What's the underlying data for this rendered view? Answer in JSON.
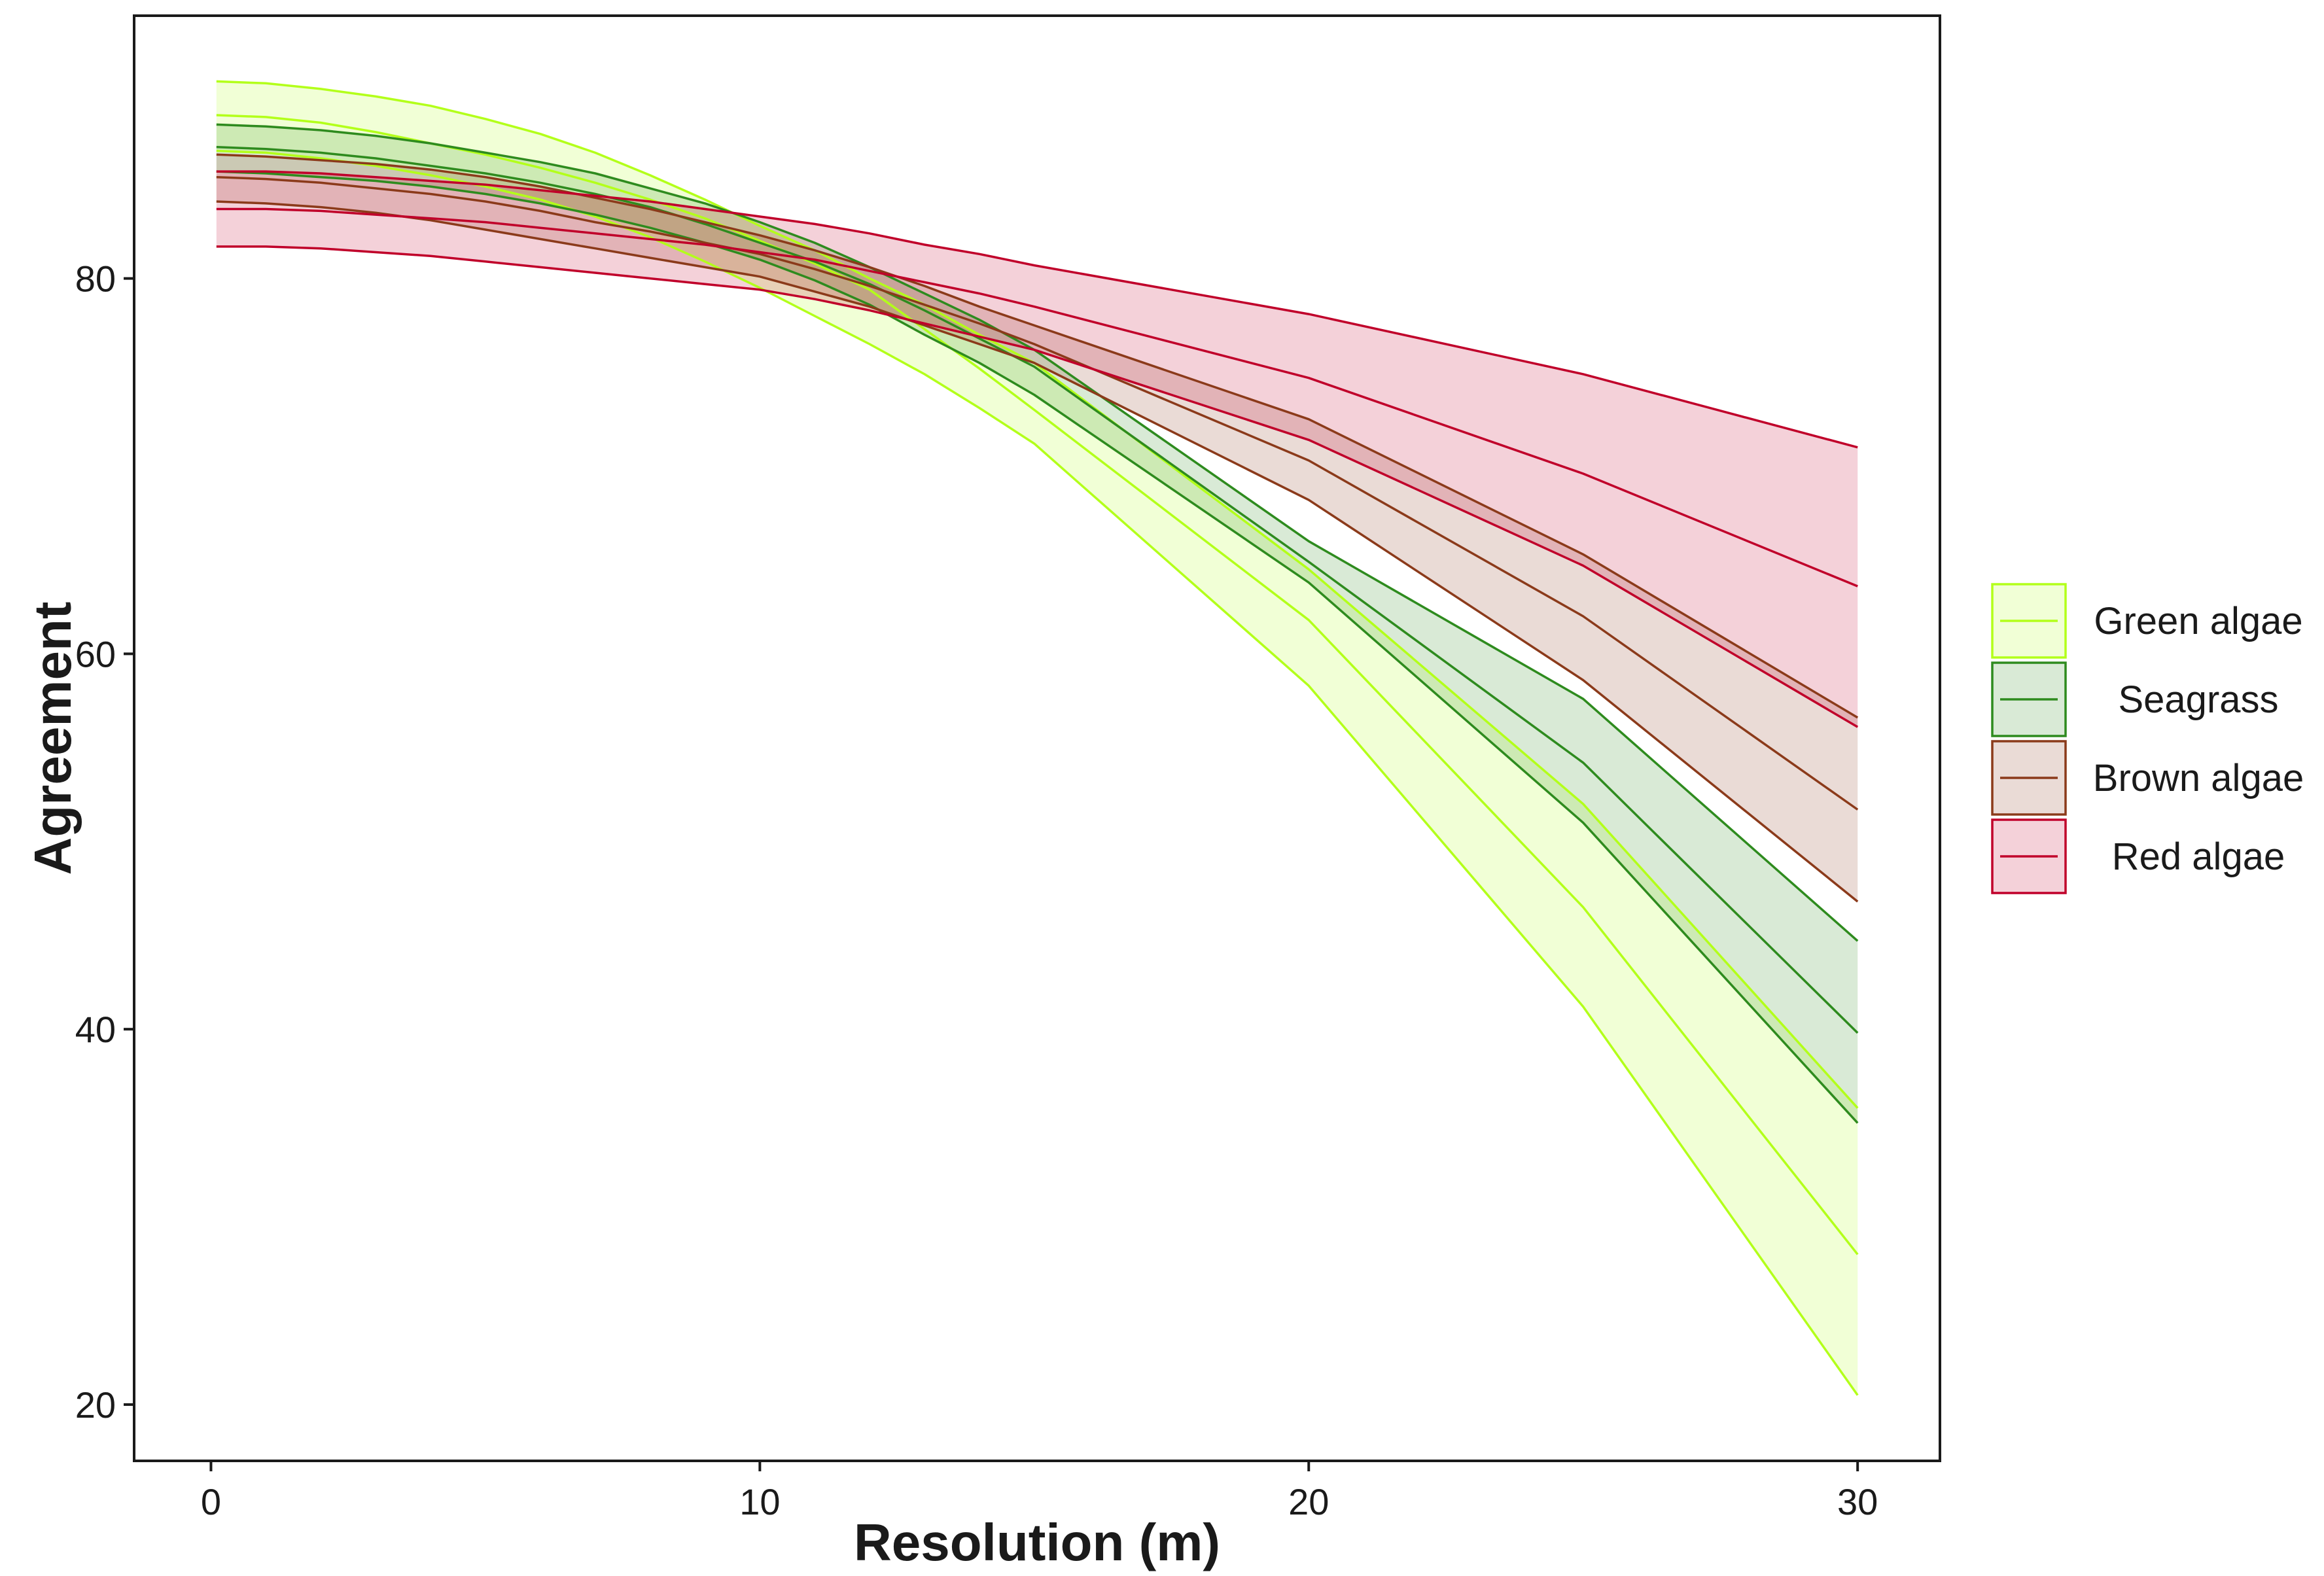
{
  "chart_data": {
    "type": "area",
    "title": "",
    "xlabel": "Resolution (m)",
    "ylabel": "Agreement",
    "xlim": [
      -1.4,
      31.5
    ],
    "ylim": [
      17,
      94
    ],
    "xticks": [
      0,
      10,
      20,
      30
    ],
    "yticks": [
      20,
      40,
      60,
      80
    ],
    "grid": false,
    "legend_position": "right",
    "x": [
      0.1,
      1,
      2,
      3,
      4,
      5,
      6,
      7,
      8,
      9,
      10,
      11,
      12,
      13,
      14,
      15,
      20,
      25,
      30
    ],
    "series": [
      {
        "name": "Green algae",
        "color": "#b3ff1a",
        "fill": "#eeffcc",
        "upper": [
          90.5,
          90.4,
          90.1,
          89.7,
          89.2,
          88.5,
          87.7,
          86.7,
          85.5,
          84.2,
          82.8,
          81.5,
          80.0,
          78.6,
          77.0,
          75.5,
          64.5,
          52.0,
          35.8
        ],
        "mean": [
          88.7,
          88.6,
          88.3,
          87.8,
          87.2,
          86.6,
          85.9,
          85.1,
          84.2,
          83.2,
          82.0,
          80.8,
          79.4,
          77.3,
          75.2,
          73.0,
          61.8,
          46.5,
          28.0
        ],
        "lower": [
          86.8,
          86.7,
          86.4,
          86.0,
          85.5,
          84.9,
          84.2,
          83.3,
          82.2,
          80.9,
          79.5,
          78.0,
          76.5,
          74.9,
          73.1,
          71.2,
          58.3,
          41.2,
          20.5
        ]
      },
      {
        "name": "Seagrass",
        "color": "#2e8b1e",
        "fill": "#d5e8cd",
        "upper": [
          88.2,
          88.1,
          87.9,
          87.6,
          87.2,
          86.7,
          86.2,
          85.6,
          84.8,
          84.0,
          83.0,
          81.9,
          80.6,
          79.2,
          77.8,
          76.2,
          66.0,
          57.6,
          44.7
        ],
        "mean": [
          87.0,
          86.9,
          86.7,
          86.4,
          86.0,
          85.6,
          85.1,
          84.5,
          83.8,
          82.9,
          81.9,
          80.9,
          79.7,
          78.3,
          76.8,
          75.3,
          64.9,
          54.2,
          39.8
        ],
        "lower": [
          85.7,
          85.6,
          85.4,
          85.2,
          84.9,
          84.5,
          84.0,
          83.4,
          82.7,
          81.9,
          81.0,
          79.9,
          78.6,
          77.0,
          75.5,
          73.8,
          63.8,
          51.0,
          35.0
        ]
      },
      {
        "name": "Brown algae",
        "color": "#8b3a1a",
        "fill": "#ead6d0",
        "upper": [
          86.6,
          86.5,
          86.3,
          86.1,
          85.8,
          85.4,
          84.9,
          84.3,
          83.7,
          83.0,
          82.3,
          81.5,
          80.6,
          79.6,
          78.5,
          77.5,
          72.5,
          65.3,
          56.6
        ],
        "mean": [
          85.4,
          85.3,
          85.1,
          84.8,
          84.5,
          84.1,
          83.6,
          83.0,
          82.5,
          81.9,
          81.3,
          80.5,
          79.6,
          78.6,
          77.6,
          76.5,
          70.3,
          62.0,
          51.7
        ],
        "lower": [
          84.1,
          84.0,
          83.8,
          83.5,
          83.1,
          82.6,
          82.1,
          81.6,
          81.1,
          80.6,
          80.1,
          79.3,
          78.5,
          77.5,
          76.5,
          75.5,
          68.2,
          58.6,
          46.8
        ]
      },
      {
        "name": "Red algae",
        "color": "#c0002a",
        "fill": "#f0c9d1",
        "upper": [
          85.7,
          85.7,
          85.6,
          85.4,
          85.2,
          85.0,
          84.7,
          84.4,
          84.1,
          83.7,
          83.3,
          82.9,
          82.4,
          81.8,
          81.3,
          80.7,
          78.1,
          74.9,
          71.0
        ],
        "mean": [
          83.7,
          83.7,
          83.6,
          83.4,
          83.2,
          83.0,
          82.7,
          82.4,
          82.1,
          81.8,
          81.4,
          81.0,
          80.4,
          79.8,
          79.2,
          78.5,
          74.7,
          69.6,
          63.6
        ],
        "lower": [
          81.7,
          81.7,
          81.6,
          81.4,
          81.2,
          80.9,
          80.6,
          80.3,
          80.0,
          79.7,
          79.4,
          78.9,
          78.3,
          77.6,
          76.9,
          76.2,
          71.4,
          64.7,
          56.1
        ]
      }
    ]
  }
}
